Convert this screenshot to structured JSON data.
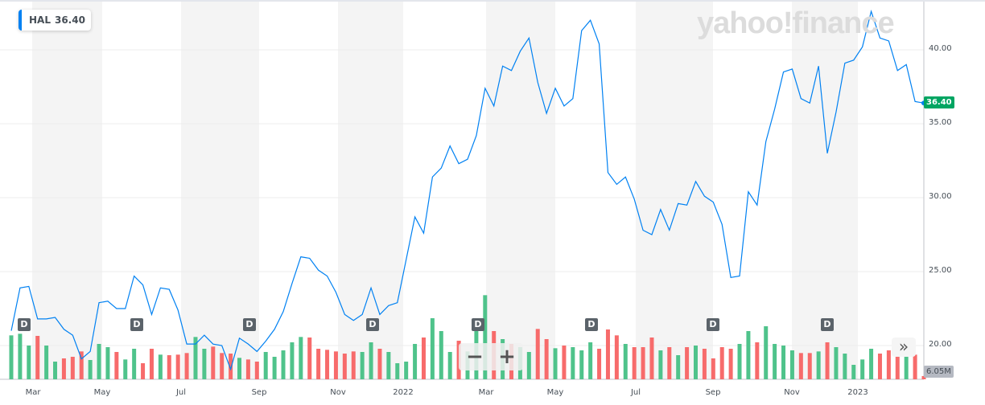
{
  "ticker": {
    "symbol": "HAL",
    "price": "36.40"
  },
  "watermark": "yahoo!finance",
  "last_price_label": "36.40",
  "last_volume_label": "6.05M",
  "dividend_marker": "D",
  "controls": {
    "zoom_out": "−",
    "zoom_in": "+",
    "scroll_more": "»"
  },
  "colors": {
    "line": "#0081f2",
    "up": "#4fc38b",
    "down": "#f76b6b",
    "band": "#f4f4f4"
  },
  "chart_data": {
    "type": "line",
    "y_ticks": [
      "40.00",
      "35.00",
      "30.00",
      "25.00",
      "20.00"
    ],
    "ylim": [
      17.5,
      43
    ],
    "x_ticks": [
      "Mar",
      "May",
      "Jul",
      "Sep",
      "Nov",
      "2022",
      "Mar",
      "May",
      "Jul",
      "Sep",
      "Nov",
      "2023"
    ],
    "grid": true,
    "price": [
      21.0,
      23.9,
      24.0,
      21.8,
      21.8,
      21.9,
      21.1,
      20.7,
      19.1,
      19.6,
      22.9,
      23.0,
      22.5,
      22.5,
      24.7,
      24.1,
      22.1,
      23.9,
      23.8,
      22.4,
      20.1,
      20.1,
      20.7,
      20.1,
      20.0,
      18.4,
      20.5,
      20.1,
      19.6,
      20.3,
      21.1,
      22.3,
      24.2,
      26.0,
      25.9,
      25.1,
      24.7,
      23.6,
      22.1,
      21.7,
      22.1,
      23.9,
      22.1,
      22.7,
      22.9,
      25.8,
      28.7,
      27.6,
      31.4,
      32.0,
      33.5,
      32.3,
      32.6,
      34.2,
      37.4,
      36.2,
      38.9,
      38.6,
      39.9,
      40.8,
      37.8,
      35.7,
      37.4,
      36.2,
      36.7,
      41.3,
      42.0,
      40.4,
      31.7,
      30.9,
      31.4,
      29.9,
      27.8,
      27.5,
      29.2,
      27.8,
      29.6,
      29.5,
      31.1,
      30.1,
      29.7,
      28.2,
      24.6,
      24.7,
      30.4,
      29.5,
      33.8,
      36.0,
      38.5,
      38.7,
      36.7,
      36.4,
      38.9,
      33.0,
      35.8,
      39.1,
      39.3,
      40.2,
      42.6,
      40.8,
      40.6,
      38.6,
      39.0,
      36.5,
      36.4
    ],
    "volume_m": [
      82,
      85,
      63,
      81,
      63,
      33,
      39,
      42,
      52,
      36,
      66,
      60,
      51,
      37,
      57,
      30,
      57,
      46,
      45,
      46,
      49,
      79,
      57,
      61,
      49,
      48,
      40,
      37,
      33,
      51,
      42,
      54,
      69,
      79,
      78,
      57,
      55,
      52,
      48,
      52,
      51,
      69,
      57,
      51,
      30,
      33,
      66,
      78,
      114,
      90,
      51,
      72,
      52,
      93,
      157,
      90,
      75,
      66,
      60,
      51,
      94,
      75,
      58,
      63,
      60,
      54,
      69,
      57,
      93,
      82,
      66,
      60,
      60,
      78,
      54,
      60,
      45,
      60,
      63,
      57,
      39,
      60,
      57,
      66,
      90,
      69,
      99,
      66,
      63,
      54,
      49,
      49,
      52,
      69,
      60,
      48,
      27,
      37,
      57,
      48,
      54,
      48,
      57,
      46,
      6.05
    ]
  }
}
